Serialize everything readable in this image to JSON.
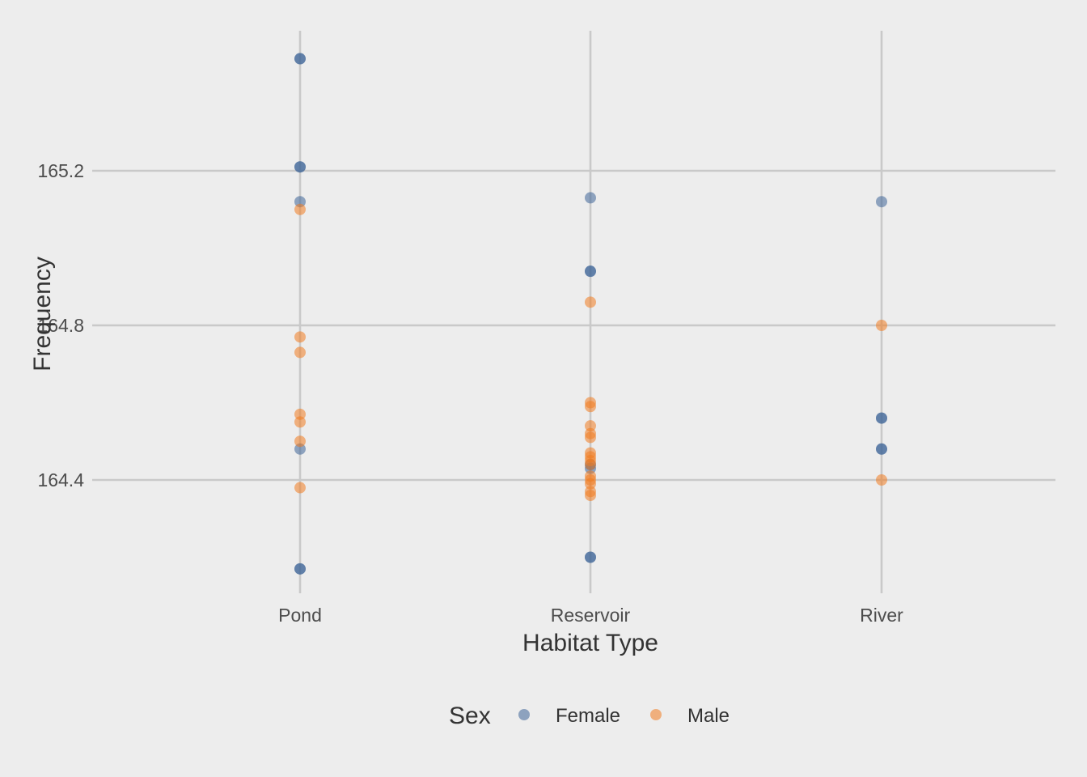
{
  "chart_data": {
    "type": "scatter",
    "xlabel": "Habitat Type",
    "ylabel": "Frequency",
    "categories": [
      "Pond",
      "Reservoir",
      "River"
    ],
    "y_ticks": [
      164.4,
      164.8,
      165.2
    ],
    "y_tick_labels": [
      "164.4",
      "164.8",
      "165.2"
    ],
    "ylim": [
      164.1,
      165.56
    ],
    "grid": true,
    "legend": {
      "title": "Sex",
      "position": "bottom"
    },
    "series": [
      {
        "name": "Female",
        "color": "#3e6498",
        "points": [
          {
            "x": "Pond",
            "y": 165.49
          },
          {
            "x": "Pond",
            "y": 165.49
          },
          {
            "x": "Pond",
            "y": 165.21
          },
          {
            "x": "Pond",
            "y": 165.21
          },
          {
            "x": "Pond",
            "y": 165.12
          },
          {
            "x": "Pond",
            "y": 164.48
          },
          {
            "x": "Pond",
            "y": 164.17
          },
          {
            "x": "Pond",
            "y": 164.17
          },
          {
            "x": "Reservoir",
            "y": 165.13
          },
          {
            "x": "Reservoir",
            "y": 164.94
          },
          {
            "x": "Reservoir",
            "y": 164.94
          },
          {
            "x": "Reservoir",
            "y": 164.43
          },
          {
            "x": "Reservoir",
            "y": 164.44
          },
          {
            "x": "Reservoir",
            "y": 164.2
          },
          {
            "x": "Reservoir",
            "y": 164.2
          },
          {
            "x": "River",
            "y": 165.12
          },
          {
            "x": "River",
            "y": 164.56
          },
          {
            "x": "River",
            "y": 164.56
          },
          {
            "x": "River",
            "y": 164.48
          },
          {
            "x": "River",
            "y": 164.48
          }
        ]
      },
      {
        "name": "Male",
        "color": "#f07b21",
        "points": [
          {
            "x": "Pond",
            "y": 165.1
          },
          {
            "x": "Pond",
            "y": 164.77
          },
          {
            "x": "Pond",
            "y": 164.73
          },
          {
            "x": "Pond",
            "y": 164.57
          },
          {
            "x": "Pond",
            "y": 164.55
          },
          {
            "x": "Pond",
            "y": 164.5
          },
          {
            "x": "Pond",
            "y": 164.38
          },
          {
            "x": "Reservoir",
            "y": 164.86
          },
          {
            "x": "Reservoir",
            "y": 164.6
          },
          {
            "x": "Reservoir",
            "y": 164.59
          },
          {
            "x": "Reservoir",
            "y": 164.54
          },
          {
            "x": "Reservoir",
            "y": 164.52
          },
          {
            "x": "Reservoir",
            "y": 164.51
          },
          {
            "x": "Reservoir",
            "y": 164.47
          },
          {
            "x": "Reservoir",
            "y": 164.46
          },
          {
            "x": "Reservoir",
            "y": 164.45
          },
          {
            "x": "Reservoir",
            "y": 164.44
          },
          {
            "x": "Reservoir",
            "y": 164.41
          },
          {
            "x": "Reservoir",
            "y": 164.4
          },
          {
            "x": "Reservoir",
            "y": 164.39
          },
          {
            "x": "Reservoir",
            "y": 164.37
          },
          {
            "x": "Reservoir",
            "y": 164.36
          },
          {
            "x": "River",
            "y": 164.8
          },
          {
            "x": "River",
            "y": 164.4
          }
        ]
      }
    ]
  }
}
